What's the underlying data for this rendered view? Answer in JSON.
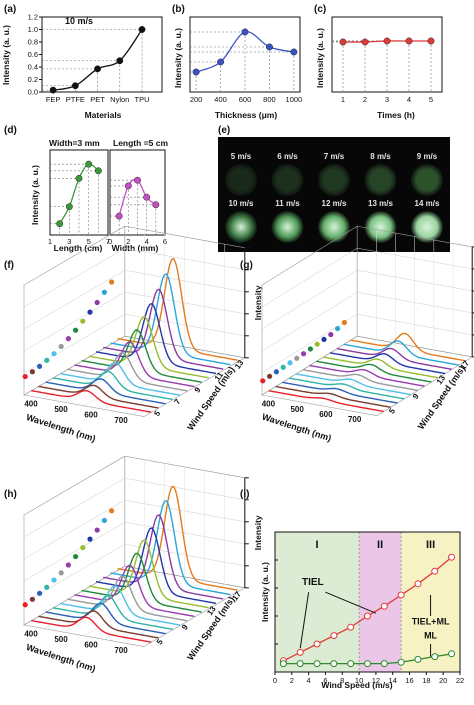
{
  "panels": {
    "a": {
      "label": "(a)",
      "annotation": "10 m/s",
      "ylabel": "Intensity (a. u.)",
      "xlabel": "Materials"
    },
    "b": {
      "label": "(b)",
      "ylabel": "Intensity (a. u.)",
      "xlabel": "Thickness (μm)"
    },
    "c": {
      "label": "(c)",
      "ylabel": "Intensity (a. u.)",
      "xlabel": "Times (h)"
    },
    "d": {
      "label": "(d)",
      "ylabel": "Intensity (a. u.)",
      "left_title": "Width=3 mm",
      "right_title": "Length =5 cm",
      "left_xlabel": "Length (cm)",
      "right_xlabel": "Width (mm)"
    },
    "e": {
      "label": "(e)",
      "speeds": [
        "5 m/s",
        "6 m/s",
        "7 m/s",
        "8 m/s",
        "9 m/s",
        "10 m/s",
        "11 m/s",
        "12 m/s",
        "13 m/s",
        "14 m/s"
      ]
    },
    "f": {
      "label": "(f)",
      "wavelength_label": "Wavelength (nm)",
      "wind_label": "Wind Speed (m/s)",
      "intensity_label": "Intensity",
      "wl_ticks": [
        "400",
        "500",
        "600",
        "700"
      ],
      "ws_ticks": [
        "5",
        "7",
        "9",
        "11",
        "13"
      ]
    },
    "g": {
      "label": "(g)",
      "wavelength_label": "Wavelength (nm)",
      "wind_label": "Wind Speed (m/s)",
      "intensity_label": "Intensity",
      "wl_ticks": [
        "400",
        "500",
        "600",
        "700"
      ],
      "ws_ticks": [
        "5",
        "9",
        "13",
        "17"
      ]
    },
    "h": {
      "label": "(h)",
      "wavelength_label": "Wavelength (nm)",
      "wind_label": "Wind Speed (m/s)",
      "intensity_label": "Intensity",
      "wl_ticks": [
        "400",
        "500",
        "600",
        "700"
      ],
      "ws_ticks": [
        "5",
        "9",
        "13",
        "17"
      ]
    },
    "i": {
      "label": "(i)",
      "ylabel": "Intensity (a. u.)",
      "xlabel": "Wind Speed (m/s)",
      "region_labels": [
        "I",
        "II",
        "III"
      ],
      "annotations": {
        "tiel": "TIEL",
        "tiel_ml": "TIEL+ML",
        "ml": "ML"
      }
    }
  },
  "colors": {
    "a": "#111111",
    "b": "#3a53c4",
    "c": "#e03a3a",
    "d_left": "#3a9a3a",
    "d_right": "#c54fc0",
    "i_red": "#e03a3a",
    "i_green": "#2f8a2f",
    "region1": "#dcebd3",
    "region2": "#ecc6e6",
    "region3": "#f6f2c4"
  },
  "spectra_colors": [
    "#e8202a",
    "#7a3b2e",
    "#2a60b6",
    "#2eb5a7",
    "#4fc0e8",
    "#9a9a9a",
    "#9a3bb0",
    "#1d8a3c",
    "#98bd2e",
    "#2336a8",
    "#8a3aa0",
    "#2aa7d8",
    "#e47a1e"
  ],
  "chart_data": [
    {
      "panel": "a",
      "type": "line",
      "categories": [
        "FEP",
        "PTFE",
        "PET",
        "Nylon",
        "TPU"
      ],
      "values": [
        0.03,
        0.1,
        0.37,
        0.5,
        1.0
      ],
      "ylim": [
        0,
        1.2
      ],
      "yticks": [
        0.0,
        0.2,
        0.4,
        0.6,
        0.8,
        1.0,
        1.2
      ]
    },
    {
      "panel": "b",
      "type": "line",
      "x": [
        200,
        400,
        600,
        800,
        1000
      ],
      "values": [
        0.2,
        0.3,
        0.6,
        0.45,
        0.4
      ],
      "xticks": [
        200,
        400,
        600,
        800,
        1000
      ],
      "ylim": [
        0,
        0.75
      ]
    },
    {
      "panel": "c",
      "type": "line",
      "x": [
        1,
        2,
        3,
        4,
        5
      ],
      "values": [
        0.5,
        0.5,
        0.51,
        0.51,
        0.51
      ],
      "xticks": [
        1,
        2,
        3,
        4,
        5
      ],
      "ylim": [
        0,
        0.75
      ]
    },
    {
      "panel": "d-left",
      "type": "line",
      "x": [
        2,
        3,
        4,
        5,
        6
      ],
      "values": [
        0.12,
        0.3,
        0.6,
        0.75,
        0.68
      ],
      "xticks": [
        1,
        3,
        5,
        7
      ],
      "xlim": [
        1,
        7
      ],
      "ylim": [
        0,
        0.9
      ]
    },
    {
      "panel": "d-right",
      "type": "line",
      "x": [
        1,
        2,
        3,
        4,
        5
      ],
      "values": [
        0.2,
        0.52,
        0.58,
        0.4,
        0.32
      ],
      "xticks": [
        0,
        2,
        4,
        6
      ],
      "xlim": [
        0,
        6
      ],
      "ylim": [
        0,
        0.9
      ]
    },
    {
      "panel": "f",
      "type": "line",
      "wind_speeds": [
        3,
        4,
        5,
        6,
        7,
        8,
        9,
        10,
        11,
        12,
        13,
        14,
        15
      ],
      "peak_wavelength_nm": [
        535,
        535,
        535,
        535,
        535,
        535,
        535,
        535,
        535,
        535,
        535,
        535,
        535
      ],
      "peak_height": [
        0.09,
        0.1,
        0.12,
        0.15,
        0.19,
        0.24,
        0.3,
        0.37,
        0.45,
        0.53,
        0.62,
        0.72,
        0.82
      ]
    },
    {
      "panel": "g",
      "type": "line",
      "wind_speeds": [
        3,
        4,
        5,
        6,
        7,
        8,
        9,
        10,
        11,
        12,
        13,
        14,
        15
      ],
      "peak_wavelength_nm": [
        540,
        540,
        540,
        540,
        540,
        540,
        540,
        540,
        540,
        540,
        540,
        540,
        540
      ],
      "peak_height": [
        0.02,
        0.025,
        0.03,
        0.035,
        0.04,
        0.045,
        0.05,
        0.06,
        0.07,
        0.08,
        0.09,
        0.12,
        0.15
      ]
    },
    {
      "panel": "h",
      "type": "line",
      "wind_speeds": [
        3,
        4,
        5,
        6,
        7,
        8,
        9,
        10,
        11,
        12,
        13,
        14,
        15
      ],
      "peak_wavelength_nm": [
        535,
        535,
        535,
        535,
        535,
        535,
        535,
        535,
        535,
        535,
        535,
        535,
        535
      ],
      "peak_height": [
        0.12,
        0.14,
        0.17,
        0.2,
        0.25,
        0.3,
        0.36,
        0.43,
        0.51,
        0.58,
        0.66,
        0.75,
        0.84
      ]
    },
    {
      "panel": "i",
      "type": "line",
      "xlim": [
        0,
        22
      ],
      "xticks": [
        0,
        2,
        4,
        6,
        8,
        10,
        12,
        14,
        16,
        18,
        20,
        22
      ],
      "region_bounds": [
        [
          0,
          10
        ],
        [
          10,
          15
        ],
        [
          15,
          22
        ]
      ],
      "series": [
        {
          "key": "red",
          "x": [
            1,
            3,
            5,
            7,
            9,
            11,
            13,
            15,
            17,
            19,
            21
          ],
          "values": [
            0.08,
            0.14,
            0.2,
            0.26,
            0.32,
            0.4,
            0.47,
            0.55,
            0.63,
            0.72,
            0.82
          ]
        },
        {
          "key": "green",
          "x": [
            1,
            3,
            5,
            7,
            9,
            11,
            13,
            15,
            17,
            19,
            21
          ],
          "values": [
            0.06,
            0.06,
            0.06,
            0.06,
            0.06,
            0.06,
            0.06,
            0.07,
            0.09,
            0.11,
            0.13
          ]
        }
      ],
      "ylim": [
        0,
        1
      ]
    }
  ]
}
